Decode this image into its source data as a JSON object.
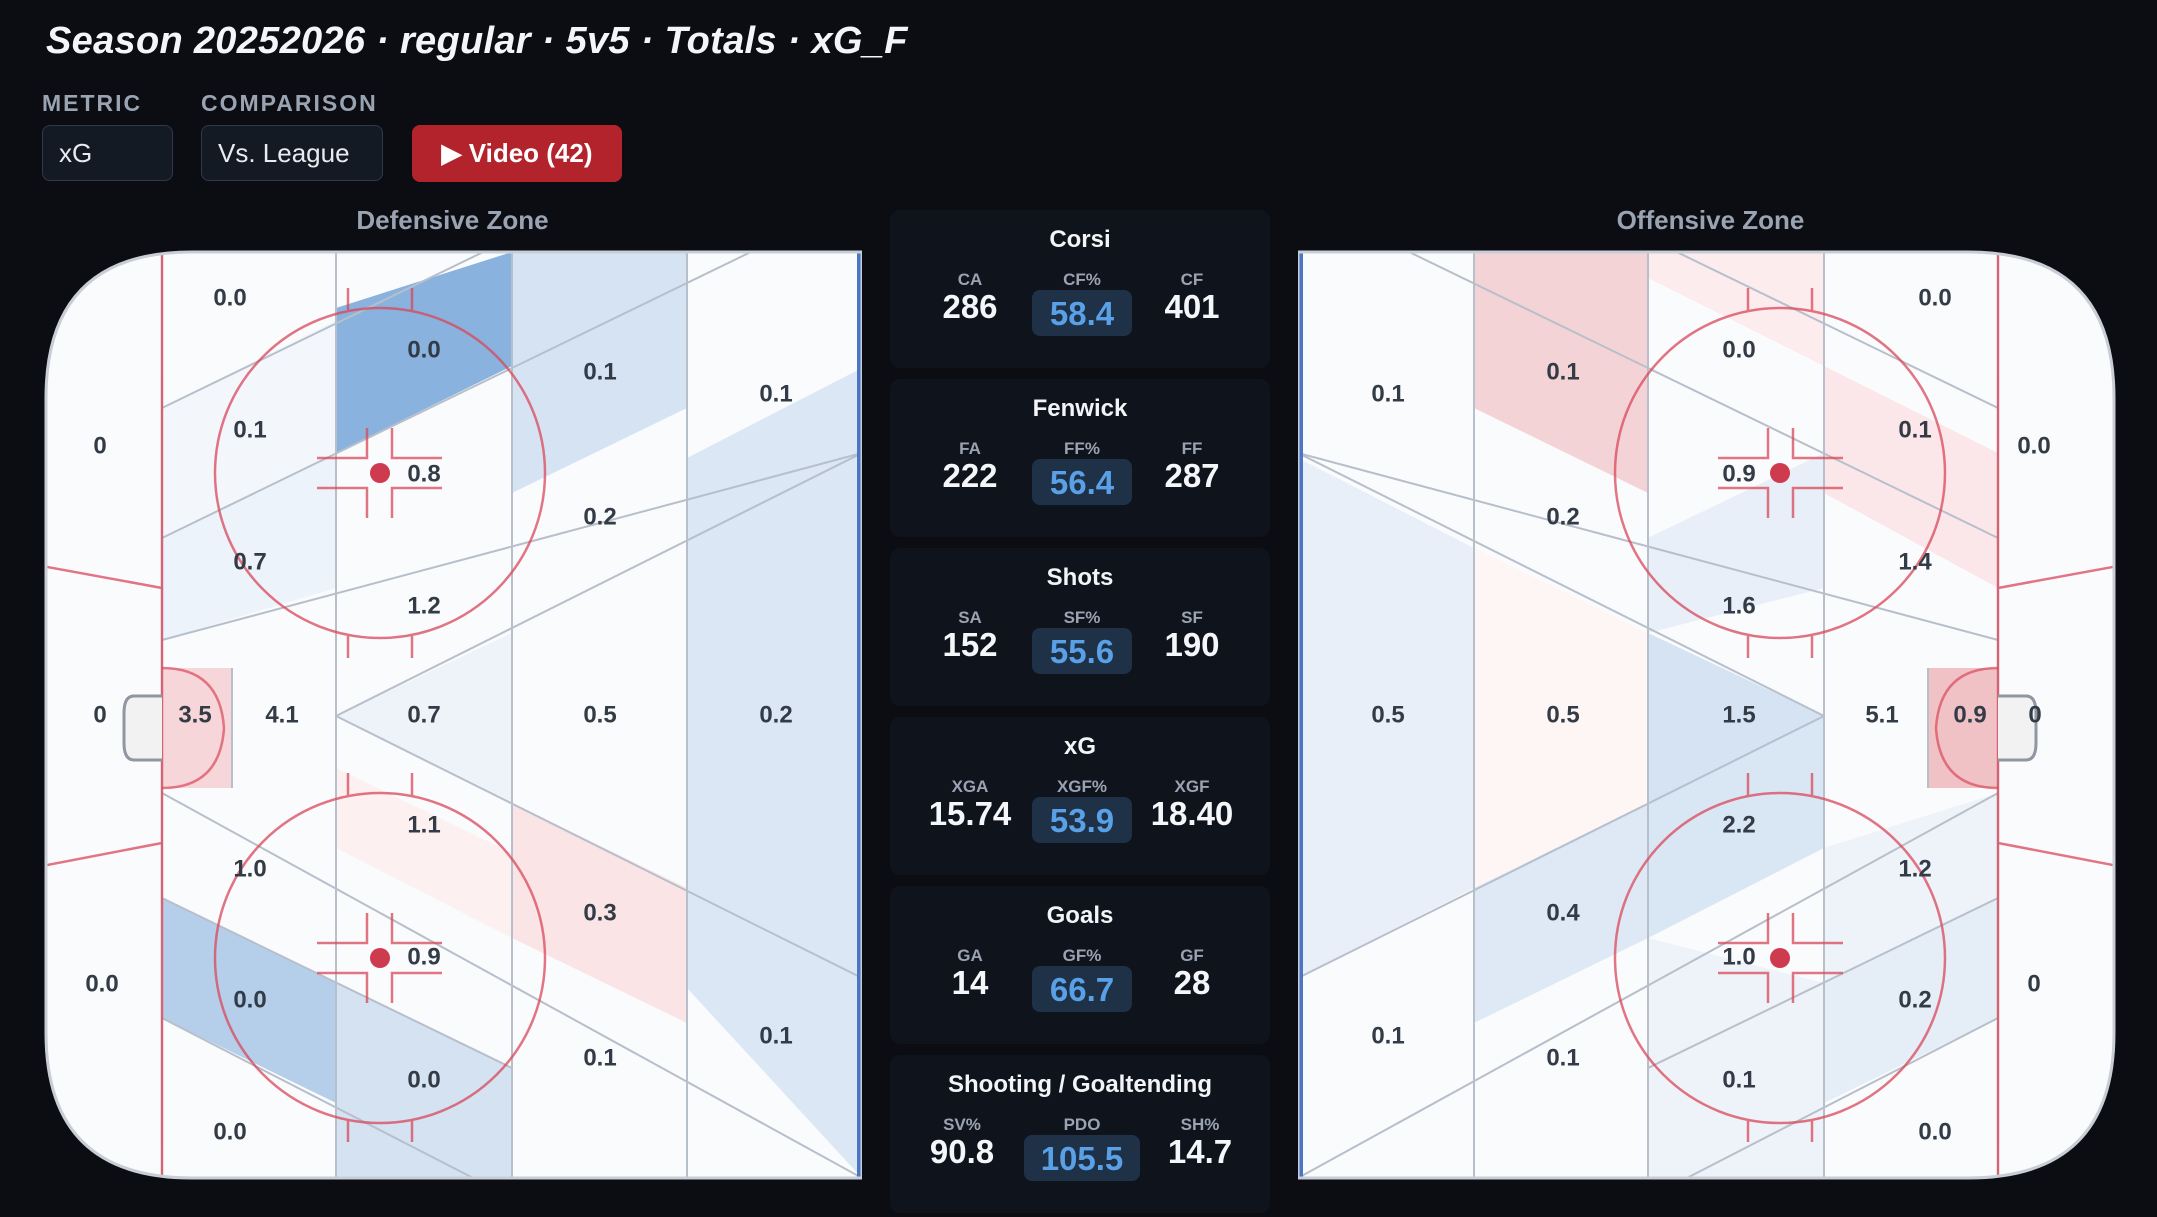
{
  "title": "Season 20252026 · regular · 5v5 · Totals · xG_F",
  "controls": {
    "metric_label": "METRIC",
    "metric_value": "xG",
    "comparison_label": "COMPARISON",
    "comparison_value": "Vs. League",
    "video_label": "▶ Video (42)"
  },
  "zones": {
    "defensive": {
      "title": "Defensive Zone",
      "values": {
        "tl_corner": "0.0",
        "l_upper": "0",
        "l_net": "0",
        "l_lower": "0.0",
        "bl_corner": "0.0",
        "c1_top": "0.0",
        "c1_a": "0.1",
        "c1_b": "0.7",
        "crease": "3.5",
        "slot": "4.1",
        "c1_c": "1.0",
        "c1_d": "0.0",
        "c1_bottom": "0.0",
        "c2_a": "0.8",
        "c2_b": "1.2",
        "c2_c": "0.7",
        "c2_d": "1.1",
        "c2_e": "0.9",
        "c2_f": "0.0",
        "c3_a": "0.1",
        "c3_b": "0.2",
        "c3_c": "0.5",
        "c3_d": "0.3",
        "c3_e": "0.1",
        "c4_a": "0.1",
        "c4_b": "0.2",
        "c4_c": "0.1"
      }
    },
    "offensive": {
      "title": "Offensive Zone",
      "values": {
        "c4_a": "0.1",
        "c4_b": "0.5",
        "c4_c": "0.1",
        "c3_a": "0.1",
        "c3_b": "0.2",
        "c3_c": "0.5",
        "c3_d": "0.4",
        "c3_e": "0.1",
        "c2_a": "0.0",
        "c2_b": "0.9",
        "c2_c": "1.6",
        "c2_d": "1.5",
        "c2_e": "2.2",
        "c2_f": "1.0",
        "c2_g": "0.1",
        "c1_top": "0.0",
        "c1_a": "0.1",
        "c1_b": "1.4",
        "slot": "5.1",
        "crease": "0.9",
        "c1_c": "1.2",
        "c1_d": "0.2",
        "c1_bottom": "0.0",
        "r_upper": "0.0",
        "r_net": "0",
        "r_lower": "0"
      }
    }
  },
  "stats": [
    {
      "title": "Corsi",
      "left_label": "CA",
      "left_value": "286",
      "mid_label": "CF%",
      "mid_value": "58.4",
      "right_label": "CF",
      "right_value": "401"
    },
    {
      "title": "Fenwick",
      "left_label": "FA",
      "left_value": "222",
      "mid_label": "FF%",
      "mid_value": "56.4",
      "right_label": "FF",
      "right_value": "287"
    },
    {
      "title": "Shots",
      "left_label": "SA",
      "left_value": "152",
      "mid_label": "SF%",
      "mid_value": "55.6",
      "right_label": "SF",
      "right_value": "190"
    },
    {
      "title": "xG",
      "left_label": "XGA",
      "left_value": "15.74",
      "mid_label": "XGF%",
      "mid_value": "53.9",
      "right_label": "XGF",
      "right_value": "18.40"
    },
    {
      "title": "Goals",
      "left_label": "GA",
      "left_value": "14",
      "mid_label": "GF%",
      "mid_value": "66.7",
      "right_label": "GF",
      "right_value": "28"
    },
    {
      "title": "Shooting / Goaltending",
      "left_label": "SV%",
      "left_value": "90.8",
      "mid_label": "PDO",
      "mid_value": "105.5",
      "right_label": "SH%",
      "right_value": "14.7"
    }
  ],
  "colors": {
    "background": "#0b0d12",
    "accent_red": "#b3232c",
    "pct_text": "#5aa0e6",
    "heat_blue_strong": "#5b93d3",
    "heat_blue_mid": "#a9c7e8",
    "heat_blue_light": "#dce8f5",
    "heat_red_mid": "#f2c4c8",
    "heat_red_light": "#fbe6e8",
    "rink_line_red": "#d9485a"
  }
}
